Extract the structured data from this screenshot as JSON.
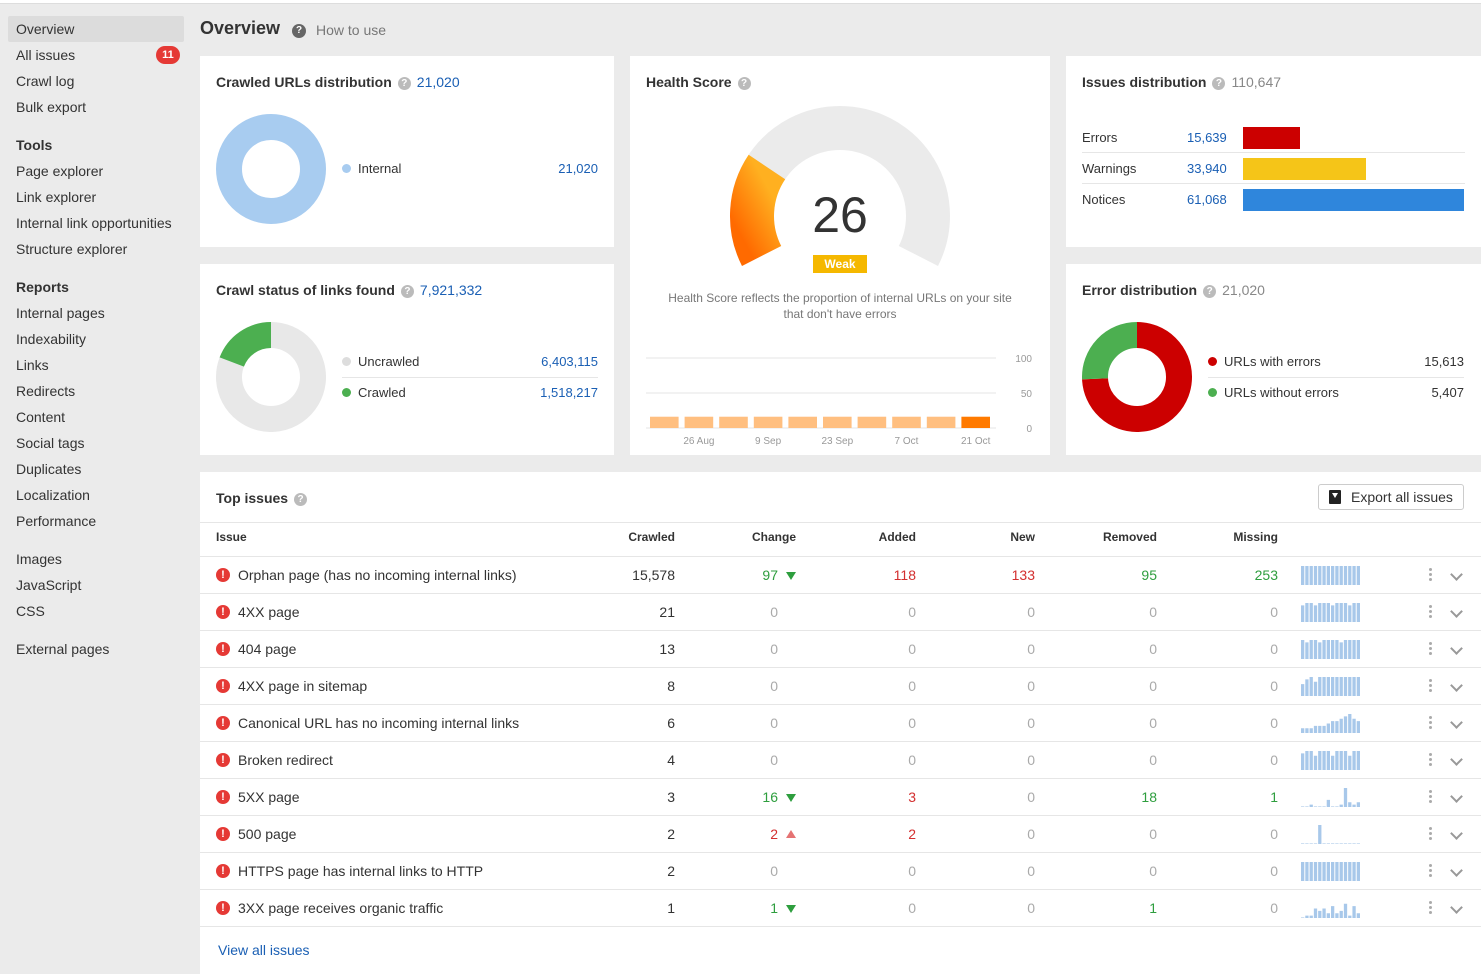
{
  "sidebar": {
    "nav": [
      {
        "label": "Overview",
        "active": true
      },
      {
        "label": "All issues",
        "badge": "11"
      },
      {
        "label": "Crawl log"
      },
      {
        "label": "Bulk export"
      }
    ],
    "tools_heading": "Tools",
    "tools": [
      "Page explorer",
      "Link explorer",
      "Internal link opportunities",
      "Structure explorer"
    ],
    "reports_heading": "Reports",
    "reports": [
      "Internal pages",
      "Indexability",
      "Links",
      "Redirects",
      "Content",
      "Social tags",
      "Duplicates",
      "Localization",
      "Performance"
    ],
    "resources": [
      "Images",
      "JavaScript",
      "CSS"
    ],
    "external": [
      "External pages"
    ]
  },
  "header": {
    "title": "Overview",
    "help_link": "How to use"
  },
  "crawled_urls": {
    "title": "Crawled URLs distribution",
    "count": "21,020",
    "legend": [
      {
        "label": "Internal",
        "value": "21,020",
        "color": "#a8ccf0",
        "fraction": 1.0
      }
    ]
  },
  "crawl_status": {
    "title": "Crawl status of links found",
    "count": "7,921,332",
    "legend": [
      {
        "label": "Uncrawled",
        "value": "6,403,115",
        "color": "#e8e8e8",
        "fraction": 0.808
      },
      {
        "label": "Crawled",
        "value": "1,518,217",
        "color": "#4caf50",
        "fraction": 0.192
      }
    ]
  },
  "health_score": {
    "title": "Health Score",
    "score": "26",
    "score_value": 26,
    "rating": "Weak",
    "description": "Health Score reflects the proportion of internal URLs on your site that don't have errors",
    "chart_data": {
      "type": "bar",
      "categories": [
        "",
        "26 Aug",
        "",
        "9 Sep",
        "",
        "23 Sep",
        "",
        "7 Oct",
        "",
        "21 Oct"
      ],
      "values": [
        26,
        26,
        26,
        26,
        26,
        26,
        26,
        26,
        26,
        26
      ],
      "x_ticks": [
        "26 Aug",
        "9 Sep",
        "23 Sep",
        "7 Oct",
        "21 Oct"
      ],
      "y_ticks": [
        "100",
        "50",
        "0"
      ],
      "ylim": [
        0,
        100
      ]
    }
  },
  "issues_distribution": {
    "title": "Issues distribution",
    "count": "110,647",
    "rows": [
      {
        "label": "Errors",
        "value": "15,639",
        "amount": 15639,
        "color": "#cc0000"
      },
      {
        "label": "Warnings",
        "value": "33,940",
        "amount": 33940,
        "color": "#f5c518"
      },
      {
        "label": "Notices",
        "value": "61,068",
        "amount": 61068,
        "color": "#2f86dc"
      }
    ]
  },
  "error_distribution": {
    "title": "Error distribution",
    "count": "21,020",
    "legend": [
      {
        "label": "URLs with errors",
        "value": "15,613",
        "color": "#cc0000",
        "fraction": 0.743
      },
      {
        "label": "URLs without errors",
        "value": "5,407",
        "color": "#4caf50",
        "fraction": 0.257
      }
    ]
  },
  "top_issues": {
    "title": "Top issues",
    "export_label": "Export all issues",
    "view_all": "View all issues",
    "columns": [
      "Issue",
      "Crawled",
      "Change",
      "Added",
      "New",
      "Removed",
      "Missing"
    ],
    "rows": [
      {
        "issue": "Orphan page (has no incoming internal links)",
        "crawled": "15,578",
        "change": "97",
        "change_dir": "down",
        "added": "118",
        "new": "133",
        "removed": "95",
        "missing": "253",
        "spark": [
          8,
          8,
          8,
          8,
          8,
          8,
          8,
          8,
          8,
          8,
          8,
          8,
          8,
          8
        ]
      },
      {
        "issue": "4XX page",
        "crawled": "21",
        "change": "0",
        "change_dir": "",
        "added": "0",
        "new": "0",
        "removed": "0",
        "missing": "0",
        "spark": [
          7,
          8,
          8,
          7,
          8,
          8,
          8,
          7,
          8,
          8,
          8,
          7,
          8,
          8
        ]
      },
      {
        "issue": "404 page",
        "crawled": "13",
        "change": "0",
        "change_dir": "",
        "added": "0",
        "new": "0",
        "removed": "0",
        "missing": "0",
        "spark": [
          8,
          7,
          8,
          8,
          7,
          8,
          8,
          8,
          8,
          7,
          8,
          8,
          8,
          8
        ]
      },
      {
        "issue": "4XX page in sitemap",
        "crawled": "8",
        "change": "0",
        "change_dir": "",
        "added": "0",
        "new": "0",
        "removed": "0",
        "missing": "0",
        "spark": [
          5,
          7,
          8,
          6,
          8,
          8,
          8,
          8,
          8,
          8,
          8,
          8,
          8,
          8
        ]
      },
      {
        "issue": "Canonical URL has no incoming internal links",
        "crawled": "6",
        "change": "0",
        "change_dir": "",
        "added": "0",
        "new": "0",
        "removed": "0",
        "missing": "0",
        "spark": [
          2,
          2,
          2,
          3,
          3,
          3,
          4,
          5,
          5,
          6,
          7,
          8,
          6,
          5
        ]
      },
      {
        "issue": "Broken redirect",
        "crawled": "4",
        "change": "0",
        "change_dir": "",
        "added": "0",
        "new": "0",
        "removed": "0",
        "missing": "0",
        "spark": [
          7,
          8,
          8,
          6,
          8,
          8,
          8,
          6,
          8,
          8,
          8,
          6,
          8,
          8
        ]
      },
      {
        "issue": "5XX page",
        "crawled": "3",
        "change": "16",
        "change_dir": "down",
        "added": "3",
        "new": "0",
        "removed": "18",
        "missing": "1",
        "spark": [
          0,
          0,
          1,
          0,
          0,
          0,
          3,
          0,
          0,
          1,
          8,
          2,
          1,
          2
        ]
      },
      {
        "issue": "500 page",
        "crawled": "2",
        "change": "2",
        "change_dir": "up",
        "added": "2",
        "new": "0",
        "removed": "0",
        "missing": "0",
        "spark": [
          0,
          0,
          0,
          0,
          8,
          0,
          0,
          0,
          0,
          0,
          0,
          0,
          0,
          0
        ]
      },
      {
        "issue": "HTTPS page has internal links to HTTP",
        "crawled": "2",
        "change": "0",
        "change_dir": "",
        "added": "0",
        "new": "0",
        "removed": "0",
        "missing": "0",
        "spark": [
          8,
          8,
          8,
          8,
          8,
          8,
          8,
          8,
          8,
          8,
          8,
          8,
          8,
          8
        ]
      },
      {
        "issue": "3XX page receives organic traffic",
        "crawled": "1",
        "change": "1",
        "change_dir": "down",
        "added": "0",
        "new": "0",
        "removed": "1",
        "missing": "0",
        "spark": [
          0,
          1,
          1,
          4,
          3,
          4,
          2,
          5,
          2,
          3,
          6,
          1,
          5,
          2
        ]
      }
    ]
  },
  "colors": {
    "accent": "#1a5fb4",
    "positive": "#2e9e3e",
    "negative": "#d32f2f",
    "badge": "#e53935",
    "health_bar": "#ffbf80",
    "health_bar_last": "#ff7a00"
  }
}
